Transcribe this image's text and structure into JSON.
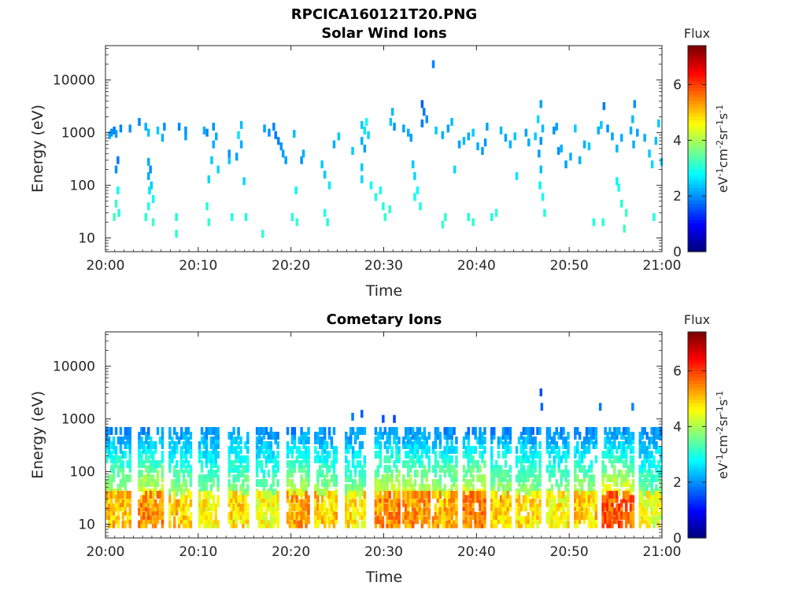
{
  "figure_title": "RPCICA160121T20.PNG",
  "chart_data": [
    {
      "type": "heatmap",
      "title": "Solar Wind Ions",
      "xlabel": "Time",
      "ylabel": "Energy (eV)",
      "x_ticks": [
        "20:00",
        "20:10",
        "20:20",
        "20:30",
        "20:40",
        "20:50",
        "21:00"
      ],
      "x_range_minutes": [
        0,
        60
      ],
      "y_scale": "log",
      "y_range": [
        5.5,
        45000
      ],
      "y_ticks": [
        10,
        100,
        1000,
        10000
      ],
      "colorbar": {
        "label": "Flux",
        "units": "eV-1cm-2sr-1s-1",
        "range": [
          0,
          7.4
        ],
        "ticks": [
          0,
          2,
          4,
          6
        ],
        "colormap": "jet"
      },
      "pixel_columns_per_minute": 4,
      "pixels": [
        [
          0.3,
          900,
          2.2
        ],
        [
          0.5,
          1000,
          2.0
        ],
        [
          0.8,
          1100,
          1.8
        ],
        [
          1.0,
          950,
          2.1
        ],
        [
          1.5,
          1200,
          1.9
        ],
        [
          1.2,
          300,
          1.8
        ],
        [
          1.0,
          200,
          2.0
        ],
        [
          1.2,
          80,
          2.8
        ],
        [
          1.0,
          45,
          3.2
        ],
        [
          1.3,
          30,
          3.0
        ],
        [
          0.8,
          25,
          3.3
        ],
        [
          2.5,
          1200,
          2.0
        ],
        [
          3.5,
          1600,
          1.9
        ],
        [
          4.2,
          1300,
          2.2
        ],
        [
          4.5,
          1000,
          2.4
        ],
        [
          4.5,
          280,
          2.2
        ],
        [
          4.7,
          200,
          2.0
        ],
        [
          4.5,
          150,
          2.2
        ],
        [
          4.8,
          100,
          2.4
        ],
        [
          4.6,
          80,
          2.6
        ],
        [
          5.0,
          55,
          2.8
        ],
        [
          4.5,
          40,
          3.0
        ],
        [
          4.2,
          25,
          3.1
        ],
        [
          5.0,
          20,
          3.2
        ],
        [
          5.5,
          1100,
          2.4
        ],
        [
          6.2,
          1300,
          2.0
        ],
        [
          6.0,
          800,
          2.2
        ],
        [
          7.5,
          25,
          3.0
        ],
        [
          7.5,
          12,
          3.1
        ],
        [
          7.8,
          1300,
          1.9
        ],
        [
          8.5,
          1100,
          2.0
        ],
        [
          8.5,
          850,
          2.1
        ],
        [
          10.5,
          1100,
          2.2
        ],
        [
          10.8,
          1000,
          1.9
        ],
        [
          11.5,
          1300,
          2.0
        ],
        [
          11.8,
          850,
          2.2
        ],
        [
          11.5,
          600,
          2.2
        ],
        [
          11.0,
          130,
          2.5
        ],
        [
          10.8,
          40,
          3.0
        ],
        [
          11.0,
          20,
          3.1
        ],
        [
          11.3,
          300,
          2.4
        ],
        [
          12.0,
          200,
          2.5
        ],
        [
          13.2,
          300,
          2.4
        ],
        [
          13.2,
          400,
          2.0
        ],
        [
          13.5,
          25,
          3.0
        ],
        [
          14.5,
          1400,
          2.3
        ],
        [
          14.2,
          900,
          2.6
        ],
        [
          14.5,
          600,
          2.2
        ],
        [
          14.0,
          350,
          2.1
        ],
        [
          14.8,
          120,
          2.5
        ],
        [
          15.0,
          25,
          3.0
        ],
        [
          16.8,
          12,
          3.1
        ],
        [
          17.0,
          1200,
          2.1
        ],
        [
          17.5,
          1000,
          2.0
        ],
        [
          18.0,
          1300,
          1.9
        ],
        [
          18.2,
          900,
          1.8
        ],
        [
          18.5,
          700,
          1.9
        ],
        [
          18.8,
          550,
          2.0
        ],
        [
          19.0,
          400,
          2.1
        ],
        [
          19.3,
          300,
          2.1
        ],
        [
          20.2,
          950,
          2.3
        ],
        [
          20.0,
          25,
          3.0
        ],
        [
          20.5,
          20,
          3.1
        ],
        [
          20.4,
          80,
          2.8
        ],
        [
          21.0,
          300,
          2.0
        ],
        [
          21.2,
          400,
          2.2
        ],
        [
          23.2,
          250,
          2.4
        ],
        [
          23.5,
          160,
          2.4
        ],
        [
          24.0,
          100,
          2.6
        ],
        [
          23.5,
          30,
          3.0
        ],
        [
          23.8,
          20,
          3.0
        ],
        [
          24.5,
          600,
          2.2
        ],
        [
          25.0,
          850,
          2.4
        ],
        [
          26.5,
          450,
          2.4
        ],
        [
          27.5,
          1400,
          2.4
        ],
        [
          27.8,
          1100,
          2.6
        ],
        [
          28.0,
          1600,
          2.8
        ],
        [
          28.2,
          900,
          2.5
        ],
        [
          27.5,
          700,
          2.2
        ],
        [
          27.8,
          500,
          2.1
        ],
        [
          27.5,
          220,
          2.4
        ],
        [
          27.5,
          130,
          2.5
        ],
        [
          28.5,
          100,
          2.8
        ],
        [
          29.0,
          60,
          3.0
        ],
        [
          29.5,
          80,
          2.9
        ],
        [
          29.8,
          40,
          3.0
        ],
        [
          30.0,
          25,
          3.1
        ],
        [
          30.5,
          35,
          3.1
        ],
        [
          30.8,
          2500,
          2.3
        ],
        [
          30.6,
          1600,
          2.4
        ],
        [
          31.0,
          1300,
          2.0
        ],
        [
          32.0,
          1200,
          2.1
        ],
        [
          32.5,
          1000,
          2.2
        ],
        [
          32.8,
          800,
          2.1
        ],
        [
          33.0,
          250,
          2.4
        ],
        [
          33.2,
          150,
          2.5
        ],
        [
          33.5,
          80,
          2.8
        ],
        [
          33.2,
          60,
          2.9
        ],
        [
          33.8,
          40,
          3.0
        ],
        [
          34.0,
          3500,
          1.6
        ],
        [
          34.2,
          2500,
          1.8
        ],
        [
          34.5,
          1800,
          2.0
        ],
        [
          34.0,
          1500,
          1.8
        ],
        [
          35.2,
          20000,
          1.9
        ],
        [
          35.5,
          1100,
          2.4
        ],
        [
          36.2,
          900,
          2.2
        ],
        [
          36.8,
          1200,
          2.1
        ],
        [
          37.2,
          1600,
          2.3
        ],
        [
          36.5,
          25,
          3.1
        ],
        [
          36.2,
          18,
          3.2
        ],
        [
          37.5,
          200,
          2.5
        ],
        [
          38.0,
          600,
          2.1
        ],
        [
          38.5,
          700,
          2.3
        ],
        [
          39.0,
          850,
          2.2
        ],
        [
          39.5,
          1000,
          2.4
        ],
        [
          40.0,
          550,
          2.2
        ],
        [
          40.5,
          450,
          2.1
        ],
        [
          40.8,
          650,
          2.0
        ],
        [
          41.0,
          1300,
          2.1
        ],
        [
          39.0,
          25,
          3.0
        ],
        [
          39.5,
          20,
          3.1
        ],
        [
          41.5,
          25,
          3.0
        ],
        [
          42.0,
          30,
          3.1
        ],
        [
          42.5,
          1100,
          2.3
        ],
        [
          43.0,
          800,
          2.1
        ],
        [
          43.5,
          600,
          2.2
        ],
        [
          44.0,
          850,
          2.4
        ],
        [
          44.2,
          150,
          2.6
        ],
        [
          45.2,
          1000,
          2.1
        ],
        [
          45.5,
          650,
          2.2
        ],
        [
          46.2,
          850,
          2.4
        ],
        [
          46.5,
          1800,
          2.5
        ],
        [
          46.8,
          3500,
          2.1
        ],
        [
          47.0,
          1200,
          2.3
        ],
        [
          46.8,
          700,
          2.0
        ],
        [
          46.6,
          400,
          2.1
        ],
        [
          46.8,
          200,
          2.3
        ],
        [
          46.7,
          100,
          2.7
        ],
        [
          47.0,
          60,
          2.9
        ],
        [
          47.2,
          30,
          3.0
        ],
        [
          48.2,
          1100,
          2.0
        ],
        [
          48.5,
          1300,
          2.1
        ],
        [
          48.7,
          450,
          2.0
        ],
        [
          49.0,
          500,
          2.2
        ],
        [
          49.5,
          250,
          2.1
        ],
        [
          50.0,
          350,
          2.2
        ],
        [
          50.5,
          1200,
          2.4
        ],
        [
          51.0,
          300,
          2.2
        ],
        [
          51.5,
          600,
          2.2
        ],
        [
          52.0,
          550,
          2.4
        ],
        [
          52.5,
          20,
          3.0
        ],
        [
          53.5,
          20,
          3.1
        ],
        [
          53.0,
          1100,
          2.2
        ],
        [
          53.3,
          1400,
          2.4
        ],
        [
          53.6,
          3200,
          1.8
        ],
        [
          54.0,
          1200,
          2.0
        ],
        [
          54.5,
          850,
          2.1
        ],
        [
          55.0,
          500,
          2.3
        ],
        [
          55.5,
          800,
          2.2
        ],
        [
          55.0,
          120,
          2.7
        ],
        [
          55.2,
          90,
          2.9
        ],
        [
          55.5,
          45,
          3.1
        ],
        [
          56.0,
          30,
          3.2
        ],
        [
          55.8,
          15,
          3.3
        ],
        [
          56.5,
          1100,
          2.2
        ],
        [
          56.7,
          1800,
          2.3
        ],
        [
          56.9,
          3500,
          2.0
        ],
        [
          56.8,
          600,
          2.2
        ],
        [
          57.2,
          1000,
          2.1
        ],
        [
          58.0,
          800,
          2.2
        ],
        [
          58.5,
          400,
          2.4
        ],
        [
          58.8,
          250,
          2.5
        ],
        [
          59.2,
          700,
          2.3
        ],
        [
          59.5,
          1500,
          2.4
        ],
        [
          59.8,
          280,
          2.5
        ],
        [
          59.0,
          25,
          3.0
        ]
      ]
    },
    {
      "type": "heatmap",
      "title": "Cometary Ions",
      "xlabel": "Time",
      "ylabel": "Energy (eV)",
      "x_ticks": [
        "20:00",
        "20:10",
        "20:20",
        "20:30",
        "20:40",
        "20:50",
        "21:00"
      ],
      "x_range_minutes": [
        0,
        60
      ],
      "y_scale": "log",
      "y_range": [
        5.5,
        45000
      ],
      "y_ticks": [
        10,
        100,
        1000,
        10000
      ],
      "colorbar": {
        "label": "Flux",
        "units": "eV-1cm-2sr-1s-1",
        "range": [
          0,
          7.4
        ],
        "ticks": [
          0,
          2,
          4,
          6
        ],
        "colormap": "jet"
      },
      "pixel_columns_per_minute": 4,
      "bands": [
        {
          "t0": 0.0,
          "t1": 2.5,
          "peak": 5.4
        },
        {
          "t0": 3.5,
          "t1": 6.0,
          "peak": 5.8
        },
        {
          "t0": 6.8,
          "t1": 9.2,
          "peak": 5.3
        },
        {
          "t0": 10.0,
          "t1": 12.2,
          "peak": 5.0
        },
        {
          "t0": 13.2,
          "t1": 15.4,
          "peak": 5.2
        },
        {
          "t0": 16.2,
          "t1": 18.6,
          "peak": 4.9
        },
        {
          "t0": 19.5,
          "t1": 21.8,
          "peak": 5.6
        },
        {
          "t0": 22.5,
          "t1": 24.8,
          "peak": 5.3
        },
        {
          "t0": 25.8,
          "t1": 28.0,
          "peak": 5.1
        },
        {
          "t0": 29.0,
          "t1": 31.5,
          "peak": 5.8
        },
        {
          "t0": 32.0,
          "t1": 34.8,
          "peak": 5.7
        },
        {
          "t0": 35.2,
          "t1": 37.8,
          "peak": 5.5
        },
        {
          "t0": 38.5,
          "t1": 40.8,
          "peak": 5.9
        },
        {
          "t0": 41.5,
          "t1": 43.5,
          "peak": 5.4
        },
        {
          "t0": 44.2,
          "t1": 46.8,
          "peak": 5.2
        },
        {
          "t0": 47.5,
          "t1": 49.8,
          "peak": 5.0
        },
        {
          "t0": 50.5,
          "t1": 52.8,
          "peak": 5.3
        },
        {
          "t0": 53.5,
          "t1": 56.8,
          "peak": 6.1
        },
        {
          "t0": 57.5,
          "t1": 59.9,
          "peak": 4.8
        }
      ],
      "outliers": [
        [
          26.5,
          1100,
          1.8
        ],
        [
          27.5,
          1250,
          1.6
        ],
        [
          29.8,
          1000,
          1.5
        ],
        [
          31.0,
          1000,
          1.4
        ],
        [
          46.8,
          3200,
          1.5
        ],
        [
          46.9,
          1700,
          1.7
        ],
        [
          53.2,
          1700,
          1.8
        ],
        [
          56.7,
          1700,
          1.9
        ]
      ]
    }
  ]
}
